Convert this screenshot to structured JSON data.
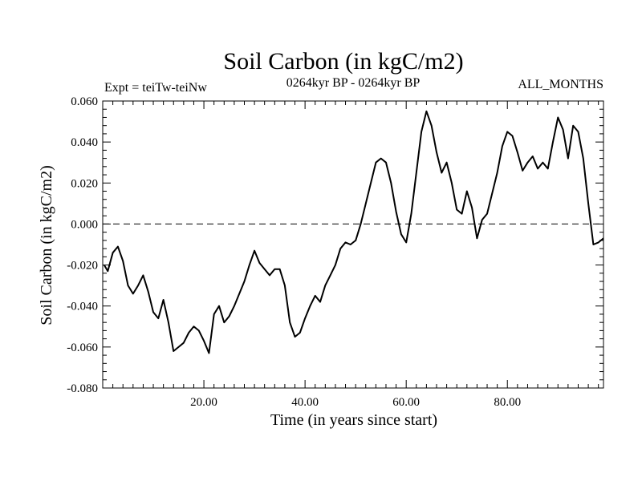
{
  "chart_data": {
    "type": "line",
    "title": "Soil Carbon (in kgC/m2)",
    "subtitle": "0264kyr BP - 0264kyr BP",
    "left_label": "Expt = teiTw-teiNw",
    "right_label": "ALL_MONTHS",
    "xlabel": "Time (in years since start)",
    "ylabel": "Soil Carbon (in kgC/m2)",
    "xlim": [
      0,
      99
    ],
    "ylim": [
      -0.08,
      0.06
    ],
    "xticks": [
      20,
      40,
      60,
      80
    ],
    "xtick_labels": [
      "20.00",
      "40.00",
      "60.00",
      "80.00"
    ],
    "yticks": [
      0.06,
      0.04,
      0.02,
      0.0,
      -0.02,
      -0.04,
      -0.06,
      -0.08
    ],
    "ytick_labels": [
      "0.060",
      "0.040",
      "0.020",
      "0.000",
      "-0.020",
      "-0.040",
      "-0.060",
      "-0.080"
    ],
    "reference_line": 0.0,
    "series": [
      {
        "name": "teiTw-teiNw",
        "color": "#000000",
        "x": [
          0.3,
          1,
          2,
          3,
          4,
          5,
          6,
          7,
          8,
          9,
          10,
          11,
          12,
          13,
          14,
          15,
          16,
          17,
          18,
          19,
          20,
          21,
          22,
          23,
          24,
          25,
          26,
          27,
          28,
          29,
          30,
          31,
          32,
          33,
          34,
          35,
          36,
          37,
          38,
          39,
          40,
          41,
          42,
          43,
          44,
          45,
          46,
          47,
          48,
          49,
          50,
          51,
          52,
          53,
          54,
          55,
          56,
          57,
          58,
          59,
          60,
          61,
          62,
          63,
          64,
          65,
          66,
          67,
          68,
          69,
          70,
          71,
          72,
          73,
          74,
          75,
          76,
          77,
          78,
          79,
          80,
          81,
          82,
          83,
          84,
          85,
          86,
          87,
          88,
          89,
          90,
          91,
          92,
          93,
          94,
          95,
          96,
          97,
          98,
          99
        ],
        "y": [
          -0.02,
          -0.023,
          -0.014,
          -0.011,
          -0.018,
          -0.03,
          -0.034,
          -0.03,
          -0.025,
          -0.033,
          -0.043,
          -0.046,
          -0.037,
          -0.048,
          -0.062,
          -0.06,
          -0.058,
          -0.053,
          -0.05,
          -0.052,
          -0.057,
          -0.063,
          -0.044,
          -0.04,
          -0.048,
          -0.045,
          -0.04,
          -0.034,
          -0.028,
          -0.02,
          -0.013,
          -0.019,
          -0.022,
          -0.025,
          -0.022,
          -0.022,
          -0.03,
          -0.048,
          -0.055,
          -0.053,
          -0.046,
          -0.04,
          -0.035,
          -0.038,
          -0.03,
          -0.025,
          -0.02,
          -0.012,
          -0.009,
          -0.01,
          -0.008,
          0.0,
          0.01,
          0.02,
          0.03,
          0.032,
          0.03,
          0.02,
          0.006,
          -0.005,
          -0.009,
          0.005,
          0.025,
          0.045,
          0.055,
          0.048,
          0.035,
          0.025,
          0.03,
          0.02,
          0.007,
          0.005,
          0.016,
          0.008,
          -0.007,
          0.002,
          0.005,
          0.015,
          0.025,
          0.038,
          0.045,
          0.043,
          0.035,
          0.026,
          0.03,
          0.033,
          0.027,
          0.03,
          0.027,
          0.04,
          0.052,
          0.046,
          0.032,
          0.048,
          0.045,
          0.032,
          0.01,
          -0.01,
          -0.009,
          -0.007
        ]
      }
    ]
  }
}
